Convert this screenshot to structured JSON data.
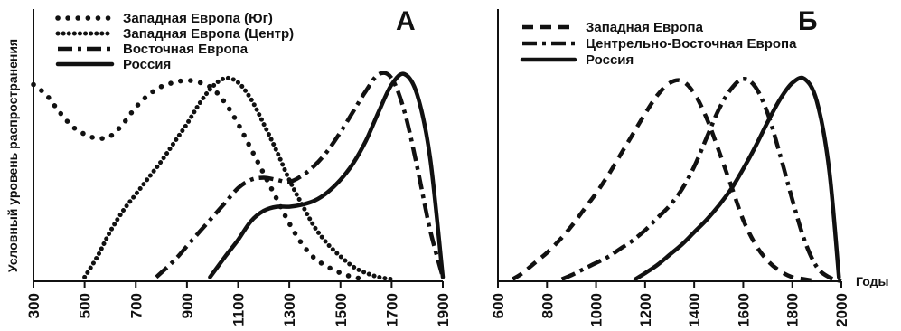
{
  "ylabel": "Условный уровень распространения",
  "chart_data": [
    {
      "type": "line",
      "panel": "A",
      "xlabel": "",
      "ylabel": "Условный уровень распространения",
      "xticks": [
        300,
        500,
        700,
        900,
        1100,
        1300,
        1500,
        1700,
        1900
      ],
      "xlim": [
        300,
        1900
      ],
      "ylim": [
        0,
        1
      ],
      "grid": false,
      "legend_position": "top-left",
      "series": [
        {
          "name": "Западная Европа (Юг)",
          "style": "dot-sparse",
          "x": [
            300,
            350,
            400,
            450,
            500,
            550,
            600,
            650,
            700,
            750,
            800,
            850,
            900,
            950,
            1000,
            1050,
            1100,
            1150,
            1200,
            1250,
            1300,
            1350,
            1400,
            1450,
            1500,
            1550,
            1600
          ],
          "y": [
            0.95,
            0.9,
            0.82,
            0.75,
            0.71,
            0.69,
            0.7,
            0.76,
            0.84,
            0.9,
            0.94,
            0.96,
            0.97,
            0.96,
            0.93,
            0.86,
            0.76,
            0.64,
            0.52,
            0.4,
            0.28,
            0.18,
            0.11,
            0.07,
            0.04,
            0.02,
            0.01
          ]
        },
        {
          "name": "Западная Европа (Центр)",
          "style": "dot-dense",
          "x": [
            500,
            550,
            600,
            650,
            700,
            750,
            800,
            850,
            900,
            950,
            1000,
            1050,
            1100,
            1150,
            1200,
            1250,
            1300,
            1350,
            1400,
            1450,
            1500,
            1550,
            1600,
            1650,
            1700
          ],
          "y": [
            0.02,
            0.12,
            0.24,
            0.34,
            0.42,
            0.5,
            0.58,
            0.67,
            0.76,
            0.86,
            0.94,
            0.98,
            0.96,
            0.88,
            0.76,
            0.63,
            0.49,
            0.37,
            0.26,
            0.18,
            0.12,
            0.07,
            0.04,
            0.02,
            0.01
          ]
        },
        {
          "name": "Восточная Европа",
          "style": "dash-dot",
          "x": [
            780,
            850,
            900,
            950,
            1000,
            1050,
            1100,
            1150,
            1200,
            1250,
            1300,
            1350,
            1400,
            1450,
            1500,
            1550,
            1600,
            1650,
            1700,
            1750,
            1800,
            1850,
            1900
          ],
          "y": [
            0.02,
            0.1,
            0.17,
            0.24,
            0.31,
            0.38,
            0.45,
            0.49,
            0.5,
            0.49,
            0.48,
            0.51,
            0.56,
            0.63,
            0.72,
            0.82,
            0.92,
            1.0,
            0.98,
            0.82,
            0.55,
            0.25,
            0.02
          ]
        },
        {
          "name": "Россия",
          "style": "solid",
          "x": [
            990,
            1050,
            1100,
            1150,
            1200,
            1250,
            1300,
            1350,
            1400,
            1450,
            1500,
            1550,
            1600,
            1650,
            1700,
            1750,
            1800,
            1850,
            1900
          ],
          "y": [
            0.02,
            0.12,
            0.2,
            0.29,
            0.34,
            0.36,
            0.36,
            0.37,
            0.39,
            0.43,
            0.49,
            0.57,
            0.68,
            0.82,
            0.95,
            1.0,
            0.9,
            0.6,
            0.02
          ]
        }
      ]
    },
    {
      "type": "line",
      "panel": "Б",
      "xlabel": "Годы",
      "ylabel": "",
      "xticks": [
        600,
        800,
        1000,
        1200,
        1400,
        1600,
        1800,
        2000
      ],
      "xlim": [
        600,
        2000
      ],
      "ylim": [
        0,
        1
      ],
      "grid": false,
      "legend_position": "top-left",
      "series": [
        {
          "name": "Западная Европа",
          "style": "dash",
          "x": [
            660,
            700,
            750,
            800,
            850,
            900,
            950,
            1000,
            1050,
            1100,
            1150,
            1200,
            1250,
            1300,
            1350,
            1400,
            1450,
            1500,
            1550,
            1600,
            1650,
            1700,
            1750,
            1800,
            1850,
            1900
          ],
          "y": [
            0.01,
            0.04,
            0.09,
            0.14,
            0.2,
            0.27,
            0.35,
            0.43,
            0.52,
            0.62,
            0.72,
            0.82,
            0.91,
            0.97,
            0.98,
            0.92,
            0.8,
            0.64,
            0.47,
            0.3,
            0.18,
            0.1,
            0.05,
            0.02,
            0.01,
            0.0
          ]
        },
        {
          "name": "Центрельно-Восточная Европа",
          "style": "dash-dot",
          "x": [
            860,
            900,
            950,
            1000,
            1050,
            1100,
            1150,
            1200,
            1250,
            1300,
            1350,
            1400,
            1450,
            1500,
            1550,
            1600,
            1650,
            1700,
            1750,
            1800,
            1850,
            1900,
            1950,
            2000
          ],
          "y": [
            0.01,
            0.03,
            0.06,
            0.09,
            0.12,
            0.16,
            0.2,
            0.25,
            0.31,
            0.37,
            0.45,
            0.56,
            0.7,
            0.84,
            0.94,
            0.99,
            0.95,
            0.82,
            0.62,
            0.4,
            0.2,
            0.07,
            0.02,
            0.0
          ]
        },
        {
          "name": "Россия",
          "style": "solid",
          "x": [
            1160,
            1200,
            1250,
            1300,
            1350,
            1400,
            1450,
            1500,
            1550,
            1600,
            1650,
            1700,
            1750,
            1800,
            1850,
            1900,
            1950,
            1990
          ],
          "y": [
            0.01,
            0.04,
            0.08,
            0.13,
            0.18,
            0.24,
            0.3,
            0.37,
            0.45,
            0.55,
            0.66,
            0.78,
            0.89,
            0.97,
            0.99,
            0.88,
            0.55,
            0.02
          ]
        }
      ]
    }
  ]
}
